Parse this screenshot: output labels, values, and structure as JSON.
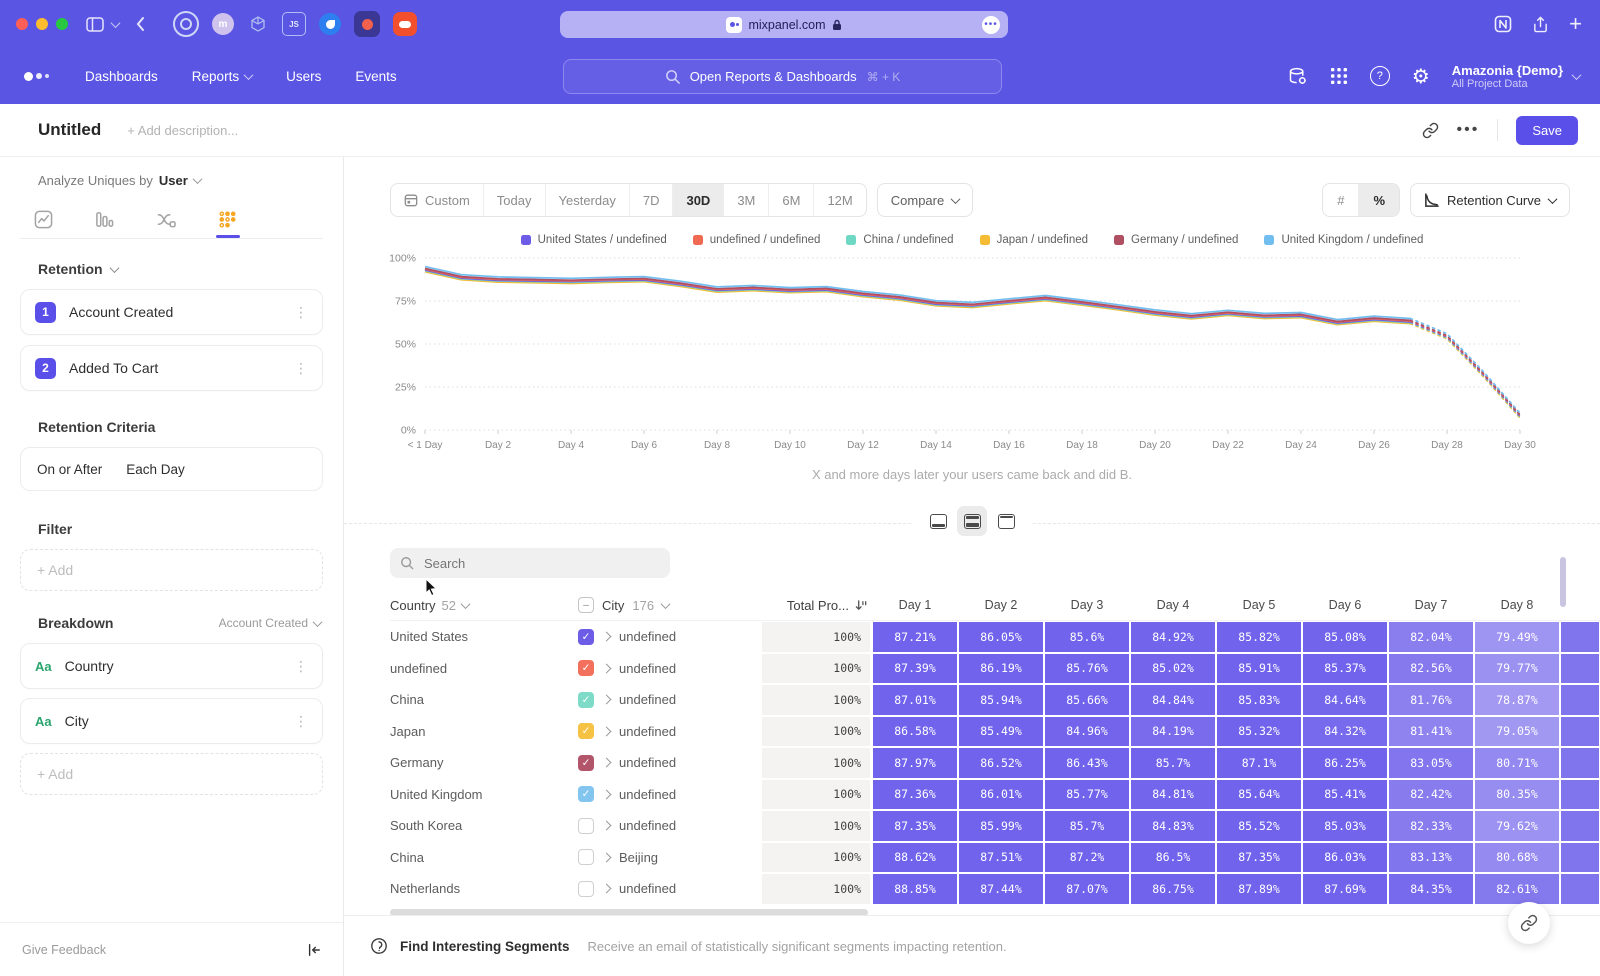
{
  "browser": {
    "url": "mixpanel.com"
  },
  "nav": {
    "items": [
      "Dashboards",
      "Reports",
      "Users",
      "Events"
    ],
    "search_placeholder": "Open Reports & Dashboards",
    "search_shortcut": "⌘ + K",
    "project_name": "Amazonia {Demo}",
    "project_subtitle": "All Project Data"
  },
  "header": {
    "title": "Untitled",
    "description_placeholder": "+ Add description...",
    "save_label": "Save"
  },
  "sidebar": {
    "analyze_label": "Analyze Uniques by",
    "analyze_value": "User",
    "section_title": "Retention",
    "steps": [
      {
        "num": "1",
        "label": "Account Created"
      },
      {
        "num": "2",
        "label": "Added To Cart"
      }
    ],
    "criteria_title": "Retention Criteria",
    "criteria_condition": "On or After",
    "criteria_interval": "Each Day",
    "filter_title": "Filter",
    "add_label": "+ Add",
    "breakdown_title": "Breakdown",
    "breakdown_scope": "Account Created",
    "breakdowns": [
      {
        "type": "Aa",
        "label": "Country"
      },
      {
        "type": "Aa",
        "label": "City"
      }
    ],
    "feedback_label": "Give Feedback"
  },
  "controls": {
    "date_ranges": [
      "Custom",
      "Today",
      "Yesterday",
      "7D",
      "30D",
      "3M",
      "6M",
      "12M"
    ],
    "active_range": "30D",
    "compare_label": "Compare",
    "value_modes": [
      "#",
      "%"
    ],
    "active_value_mode": "%",
    "chart_type_label": "Retention Curve"
  },
  "chart_data": {
    "type": "line",
    "caption": "X and more days later your users came back and did B.",
    "y_ticks": [
      "100%",
      "75%",
      "50%",
      "25%",
      "0%"
    ],
    "ylim": [
      0,
      100
    ],
    "x_ticks": [
      "< 1 Day",
      "Day 2",
      "Day 4",
      "Day 6",
      "Day 8",
      "Day 10",
      "Day 12",
      "Day 14",
      "Day 16",
      "Day 18",
      "Day 20",
      "Day 22",
      "Day 24",
      "Day 26",
      "Day 28",
      "Day 30"
    ],
    "dashed_from_index": 27,
    "series": [
      {
        "name": "United States / undefined",
        "color": "#6d5ce6",
        "values": [
          93.0,
          88.3,
          87.0,
          86.6,
          86.2,
          86.8,
          87.2,
          84.5,
          81.2,
          82.0,
          80.8,
          81.4,
          78.5,
          76.5,
          73.2,
          72.2,
          74.3,
          76.2,
          73.6,
          70.8,
          67.8,
          65.6,
          67.6,
          65.8,
          66.3,
          62.2,
          64.2,
          62.8,
          54.0,
          32.0,
          8.0
        ]
      },
      {
        "name": "undefined / undefined",
        "color": "#f06a52",
        "values": [
          93.5,
          88.8,
          87.5,
          87.1,
          86.7,
          87.3,
          87.7,
          85.0,
          81.7,
          82.5,
          81.3,
          81.9,
          79.0,
          77.0,
          73.7,
          72.7,
          74.8,
          76.7,
          74.1,
          71.3,
          68.3,
          66.1,
          68.1,
          66.3,
          66.8,
          62.7,
          64.7,
          63.3,
          54.5,
          32.5,
          8.5
        ]
      },
      {
        "name": "China / undefined",
        "color": "#6fd8c5",
        "values": [
          92.6,
          87.9,
          86.6,
          86.2,
          85.8,
          86.4,
          86.8,
          84.1,
          80.8,
          81.6,
          80.4,
          81.0,
          78.1,
          76.1,
          72.8,
          71.8,
          73.9,
          75.8,
          73.2,
          70.4,
          67.4,
          65.2,
          67.2,
          65.4,
          65.9,
          61.8,
          63.8,
          62.4,
          53.6,
          31.6,
          7.6
        ]
      },
      {
        "name": "Japan / undefined",
        "color": "#f4bb33",
        "values": [
          92.0,
          87.3,
          86.0,
          85.6,
          85.2,
          85.8,
          86.2,
          83.5,
          80.2,
          81.0,
          79.8,
          80.4,
          77.5,
          75.5,
          72.2,
          71.2,
          73.3,
          75.2,
          72.6,
          69.8,
          66.8,
          64.6,
          66.6,
          64.8,
          65.3,
          61.2,
          63.2,
          61.8,
          53.0,
          31.0,
          7.0
        ]
      },
      {
        "name": "Germany / undefined",
        "color": "#b04e62",
        "values": [
          93.9,
          89.2,
          87.9,
          87.5,
          87.1,
          87.7,
          88.1,
          85.4,
          82.1,
          82.9,
          81.7,
          82.3,
          79.4,
          77.4,
          74.1,
          73.1,
          75.2,
          77.1,
          74.5,
          71.7,
          68.7,
          66.5,
          68.5,
          66.7,
          67.2,
          63.1,
          65.1,
          63.7,
          54.9,
          32.9,
          8.9
        ]
      },
      {
        "name": "United Kingdom / undefined",
        "color": "#72bdf0",
        "values": [
          95.0,
          90.3,
          89.0,
          88.6,
          88.2,
          88.8,
          89.2,
          86.5,
          83.2,
          84.0,
          82.8,
          83.4,
          80.5,
          78.5,
          75.2,
          74.2,
          76.3,
          78.2,
          75.6,
          72.8,
          69.8,
          67.6,
          69.6,
          67.8,
          68.3,
          64.2,
          66.2,
          64.8,
          56.0,
          33.9,
          9.8
        ]
      }
    ]
  },
  "table": {
    "search_placeholder": "Search",
    "header": {
      "country": "Country",
      "country_count": "52",
      "city": "City",
      "city_count": "176",
      "total": "Total Pro...",
      "days": [
        "Day 1",
        "Day 2",
        "Day 3",
        "Day 4",
        "Day 5",
        "Day 6",
        "Day 7",
        "Day 8"
      ]
    },
    "rows": [
      {
        "country": "United States",
        "checked": true,
        "color": "#6d5ce6",
        "city": "undefined",
        "total": "100%",
        "values": [
          "87.21%",
          "86.05%",
          "85.6%",
          "84.92%",
          "85.82%",
          "85.08%",
          "82.04%",
          "79.49%"
        ]
      },
      {
        "country": "undefined",
        "checked": true,
        "color": "#f3715c",
        "city": "undefined",
        "total": "100%",
        "values": [
          "87.39%",
          "86.19%",
          "85.76%",
          "85.02%",
          "85.91%",
          "85.37%",
          "82.56%",
          "79.77%"
        ]
      },
      {
        "country": "China",
        "checked": true,
        "color": "#7edbc8",
        "city": "undefined",
        "total": "100%",
        "values": [
          "87.01%",
          "85.94%",
          "85.66%",
          "84.84%",
          "85.83%",
          "84.64%",
          "81.76%",
          "78.87%"
        ]
      },
      {
        "country": "Japan",
        "checked": true,
        "color": "#f6c244",
        "city": "undefined",
        "total": "100%",
        "values": [
          "86.58%",
          "85.49%",
          "84.96%",
          "84.19%",
          "85.32%",
          "84.32%",
          "81.41%",
          "79.05%"
        ]
      },
      {
        "country": "Germany",
        "checked": true,
        "color": "#b2556a",
        "city": "undefined",
        "total": "100%",
        "values": [
          "87.97%",
          "86.52%",
          "86.43%",
          "85.7%",
          "87.1%",
          "86.25%",
          "83.05%",
          "80.71%"
        ]
      },
      {
        "country": "United Kingdom",
        "checked": true,
        "color": "#82c6f0",
        "city": "undefined",
        "total": "100%",
        "values": [
          "87.36%",
          "86.01%",
          "85.77%",
          "84.81%",
          "85.64%",
          "85.41%",
          "82.42%",
          "80.35%"
        ]
      },
      {
        "country": "South Korea",
        "checked": false,
        "color": null,
        "city": "undefined",
        "total": "100%",
        "values": [
          "87.35%",
          "85.99%",
          "85.7%",
          "84.83%",
          "85.52%",
          "85.03%",
          "82.33%",
          "79.62%"
        ]
      },
      {
        "country": "China",
        "checked": false,
        "color": null,
        "city": "Beijing",
        "total": "100%",
        "values": [
          "88.62%",
          "87.51%",
          "87.2%",
          "86.5%",
          "87.35%",
          "86.03%",
          "83.13%",
          "80.68%"
        ]
      },
      {
        "country": "Netherlands",
        "checked": false,
        "color": null,
        "city": "undefined",
        "total": "100%",
        "values": [
          "88.85%",
          "87.44%",
          "87.07%",
          "86.75%",
          "87.89%",
          "87.69%",
          "84.35%",
          "82.61%"
        ]
      }
    ]
  },
  "footer": {
    "title": "Find Interesting Segments",
    "description": "Receive an email of statistically significant segments impacting retention."
  }
}
